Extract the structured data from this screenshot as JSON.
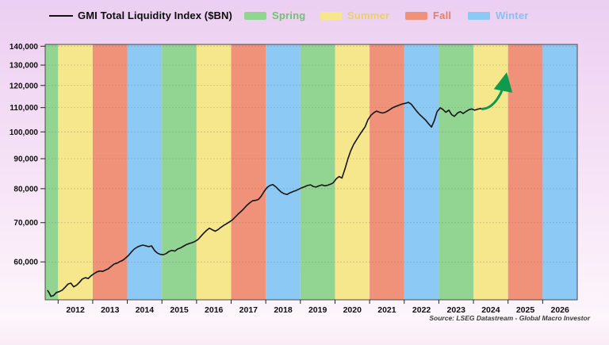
{
  "legend": {
    "series_label": "GMI Total Liquidity Index ($BN)",
    "seasons": [
      {
        "label": "Spring",
        "band_color": "#92d492",
        "text_color": "#6fc46f"
      },
      {
        "label": "Summer",
        "band_color": "#f6e68c",
        "text_color": "#e7d166"
      },
      {
        "label": "Fall",
        "band_color": "#f0917a",
        "text_color": "#e97e60"
      },
      {
        "label": "Winter",
        "band_color": "#8cc9f4",
        "text_color": "#82c3f1"
      }
    ]
  },
  "source_note": "Source: LSEG Datastream - Global Macro Investor",
  "chart_data": {
    "type": "line",
    "title": "GMI Total Liquidity Index ($BN)",
    "line_color": "#141414",
    "grid": "dotted-horizontal",
    "y_axis": {
      "scale": "log",
      "min": 51700,
      "max": 141000,
      "ticks": [
        140000,
        130000,
        120000,
        110000,
        100000,
        90000,
        80000,
        70000,
        60000
      ],
      "tick_labels": [
        "140,000",
        "130,000",
        "120,000",
        "110,000",
        "100,000",
        "90,000",
        "80,000",
        "70,000",
        "60,000"
      ]
    },
    "x_axis": {
      "min_year": 2011.627,
      "max_year": 2027,
      "label_years": [
        2012,
        2013,
        2014,
        2015,
        2016,
        2017,
        2018,
        2019,
        2020,
        2021,
        2022,
        2023,
        2024,
        2025,
        2026
      ],
      "labels": [
        "2012",
        "2013",
        "2014",
        "2015",
        "2016",
        "2017",
        "2018",
        "2019",
        "2020",
        "2021",
        "2022",
        "2023",
        "2024",
        "2025",
        "2026"
      ]
    },
    "season_bands": [
      {
        "year": 2011,
        "season": "Spring"
      },
      {
        "year": 2012,
        "season": "Summer"
      },
      {
        "year": 2013,
        "season": "Fall"
      },
      {
        "year": 2014,
        "season": "Winter"
      },
      {
        "year": 2015,
        "season": "Spring"
      },
      {
        "year": 2016,
        "season": "Summer"
      },
      {
        "year": 2017,
        "season": "Fall"
      },
      {
        "year": 2018,
        "season": "Winter"
      },
      {
        "year": 2019,
        "season": "Spring"
      },
      {
        "year": 2020,
        "season": "Summer"
      },
      {
        "year": 2021,
        "season": "Fall"
      },
      {
        "year": 2022,
        "season": "Winter"
      },
      {
        "year": 2023,
        "season": "Spring"
      },
      {
        "year": 2024,
        "season": "Summer"
      },
      {
        "year": 2025,
        "season": "Fall"
      },
      {
        "year": 2026,
        "season": "Winter"
      }
    ],
    "series": {
      "name": "GMI Total Liquidity Index ($BN)",
      "points": [
        [
          2011.7,
          53600
        ],
        [
          2011.75,
          53000
        ],
        [
          2011.79,
          52400
        ],
        [
          2011.87,
          52600
        ],
        [
          2011.95,
          53200
        ],
        [
          2012.04,
          53400
        ],
        [
          2012.12,
          53700
        ],
        [
          2012.2,
          54300
        ],
        [
          2012.29,
          55000
        ],
        [
          2012.37,
          55200
        ],
        [
          2012.45,
          54400
        ],
        [
          2012.54,
          54800
        ],
        [
          2012.62,
          55400
        ],
        [
          2012.7,
          56100
        ],
        [
          2012.79,
          56400
        ],
        [
          2012.87,
          56200
        ],
        [
          2012.95,
          56800
        ],
        [
          2013.04,
          57300
        ],
        [
          2013.12,
          57700
        ],
        [
          2013.2,
          57900
        ],
        [
          2013.29,
          57800
        ],
        [
          2013.37,
          58100
        ],
        [
          2013.45,
          58400
        ],
        [
          2013.54,
          59000
        ],
        [
          2013.62,
          59500
        ],
        [
          2013.7,
          59700
        ],
        [
          2013.79,
          60100
        ],
        [
          2013.87,
          60400
        ],
        [
          2013.95,
          60900
        ],
        [
          2014.04,
          61600
        ],
        [
          2014.12,
          62400
        ],
        [
          2014.2,
          63100
        ],
        [
          2014.29,
          63600
        ],
        [
          2014.37,
          63900
        ],
        [
          2014.45,
          64100
        ],
        [
          2014.54,
          63900
        ],
        [
          2014.62,
          63700
        ],
        [
          2014.7,
          63900
        ],
        [
          2014.79,
          62700
        ],
        [
          2014.87,
          62100
        ],
        [
          2014.95,
          61800
        ],
        [
          2015.04,
          61700
        ],
        [
          2015.12,
          62000
        ],
        [
          2015.2,
          62500
        ],
        [
          2015.29,
          62800
        ],
        [
          2015.37,
          62600
        ],
        [
          2015.45,
          63100
        ],
        [
          2015.54,
          63400
        ],
        [
          2015.62,
          63800
        ],
        [
          2015.7,
          64200
        ],
        [
          2015.79,
          64500
        ],
        [
          2015.87,
          64700
        ],
        [
          2015.95,
          65000
        ],
        [
          2016.04,
          65500
        ],
        [
          2016.12,
          66300
        ],
        [
          2016.2,
          67100
        ],
        [
          2016.29,
          67900
        ],
        [
          2016.37,
          68500
        ],
        [
          2016.45,
          68100
        ],
        [
          2016.54,
          67700
        ],
        [
          2016.62,
          68100
        ],
        [
          2016.7,
          68700
        ],
        [
          2016.79,
          69300
        ],
        [
          2016.87,
          69700
        ],
        [
          2016.95,
          70200
        ],
        [
          2017.04,
          70800
        ],
        [
          2017.12,
          71600
        ],
        [
          2017.2,
          72400
        ],
        [
          2017.29,
          73200
        ],
        [
          2017.37,
          74000
        ],
        [
          2017.45,
          74900
        ],
        [
          2017.54,
          75700
        ],
        [
          2017.62,
          76300
        ],
        [
          2017.7,
          76400
        ],
        [
          2017.79,
          76700
        ],
        [
          2017.87,
          77700
        ],
        [
          2017.95,
          79100
        ],
        [
          2018.04,
          80400
        ],
        [
          2018.12,
          81000
        ],
        [
          2018.2,
          81300
        ],
        [
          2018.29,
          80600
        ],
        [
          2018.37,
          79700
        ],
        [
          2018.45,
          78900
        ],
        [
          2018.54,
          78400
        ],
        [
          2018.62,
          78200
        ],
        [
          2018.7,
          78700
        ],
        [
          2018.79,
          79100
        ],
        [
          2018.87,
          79400
        ],
        [
          2018.95,
          79800
        ],
        [
          2019.04,
          80300
        ],
        [
          2019.12,
          80600
        ],
        [
          2019.2,
          81000
        ],
        [
          2019.29,
          81200
        ],
        [
          2019.37,
          80700
        ],
        [
          2019.45,
          80500
        ],
        [
          2019.54,
          80900
        ],
        [
          2019.62,
          81200
        ],
        [
          2019.7,
          80900
        ],
        [
          2019.79,
          81100
        ],
        [
          2019.87,
          81400
        ],
        [
          2019.95,
          81900
        ],
        [
          2020.04,
          83200
        ],
        [
          2020.12,
          83900
        ],
        [
          2020.2,
          83400
        ],
        [
          2020.29,
          86500
        ],
        [
          2020.37,
          89800
        ],
        [
          2020.45,
          92700
        ],
        [
          2020.54,
          95200
        ],
        [
          2020.62,
          96900
        ],
        [
          2020.7,
          98600
        ],
        [
          2020.79,
          100400
        ],
        [
          2020.87,
          102000
        ],
        [
          2020.95,
          104800
        ],
        [
          2021.04,
          106800
        ],
        [
          2021.12,
          107800
        ],
        [
          2021.2,
          108500
        ],
        [
          2021.29,
          108000
        ],
        [
          2021.37,
          107700
        ],
        [
          2021.45,
          108000
        ],
        [
          2021.54,
          108700
        ],
        [
          2021.62,
          109500
        ],
        [
          2021.7,
          110200
        ],
        [
          2021.79,
          110700
        ],
        [
          2021.87,
          111200
        ],
        [
          2021.95,
          111600
        ],
        [
          2022.04,
          111900
        ],
        [
          2022.12,
          112300
        ],
        [
          2022.2,
          111500
        ],
        [
          2022.29,
          109800
        ],
        [
          2022.37,
          108300
        ],
        [
          2022.45,
          107000
        ],
        [
          2022.54,
          105800
        ],
        [
          2022.62,
          104700
        ],
        [
          2022.7,
          103300
        ],
        [
          2022.79,
          101900
        ],
        [
          2022.87,
          104500
        ],
        [
          2022.95,
          108300
        ],
        [
          2023.04,
          109900
        ],
        [
          2023.12,
          109200
        ],
        [
          2023.2,
          108000
        ],
        [
          2023.29,
          108900
        ],
        [
          2023.37,
          107000
        ],
        [
          2023.45,
          106300
        ],
        [
          2023.54,
          107700
        ],
        [
          2023.62,
          108300
        ],
        [
          2023.7,
          107500
        ],
        [
          2023.79,
          108400
        ],
        [
          2023.87,
          109100
        ],
        [
          2023.95,
          109400
        ],
        [
          2024.04,
          108900
        ],
        [
          2024.12,
          109300
        ],
        [
          2024.2,
          109600
        ],
        [
          2024.26,
          109300
        ]
      ]
    },
    "projection_arrow": {
      "from": [
        2024.26,
        109400
      ],
      "to": [
        2024.93,
        123500
      ],
      "color": "#0f9b4d"
    }
  }
}
